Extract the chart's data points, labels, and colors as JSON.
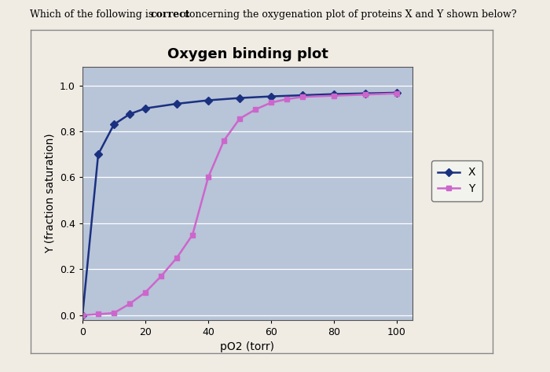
{
  "title": "Oxygen binding plot",
  "xlabel": "pO2 (torr)",
  "ylabel": "Y (fraction saturation)",
  "question_text": "Which of the following is correct concerning the oxygenation plot of proteins X and Y shown below?",
  "question_bold_word": "correct",
  "xlim": [
    0,
    105
  ],
  "ylim": [
    -0.02,
    1.08
  ],
  "xticks": [
    0,
    20,
    40,
    60,
    80,
    100
  ],
  "yticks": [
    0.0,
    0.2,
    0.4,
    0.6,
    0.8,
    1.0
  ],
  "x_curve": {
    "pO2": [
      0,
      5,
      10,
      15,
      20,
      30,
      40,
      50,
      60,
      70,
      80,
      90,
      100
    ],
    "Y": [
      0.0,
      0.7,
      0.83,
      0.875,
      0.9,
      0.92,
      0.935,
      0.945,
      0.952,
      0.957,
      0.962,
      0.965,
      0.968
    ],
    "color": "#1a3080",
    "marker": "D",
    "markersize": 5,
    "linewidth": 1.8,
    "label": "X"
  },
  "y_curve": {
    "pO2": [
      0,
      5,
      10,
      15,
      20,
      25,
      30,
      35,
      40,
      45,
      50,
      55,
      60,
      65,
      70,
      80,
      90,
      100
    ],
    "Y": [
      0.0,
      0.005,
      0.01,
      0.05,
      0.1,
      0.17,
      0.25,
      0.35,
      0.6,
      0.76,
      0.855,
      0.895,
      0.925,
      0.94,
      0.95,
      0.955,
      0.96,
      0.965
    ],
    "color": "#cc66cc",
    "marker": "s",
    "markersize": 5,
    "linewidth": 1.8,
    "label": "Y"
  },
  "plot_bg_color": "#b8c4d8",
  "outer_bg": "#d8d0c8",
  "page_bg": "#f0ece4",
  "title_fontsize": 13,
  "axis_label_fontsize": 10,
  "tick_fontsize": 9,
  "legend_fontsize": 10,
  "grid_color": "#ffffff",
  "grid_linewidth": 0.9
}
